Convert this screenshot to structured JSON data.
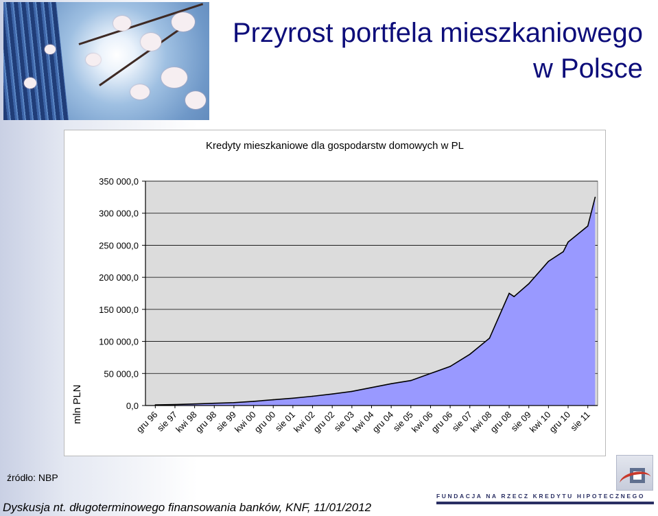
{
  "slide": {
    "title_line1": "Przyrost portfela mieszkaniowego",
    "title_line2": "w Polsce",
    "source": "źródło: NBP",
    "footer": "Dyskusja nt. długoterminowego finansowania banków, KNF, 11/01/2012",
    "logo_text": "FUNDACJA NA RZECZ KREDYTU HIPOTECZNEGO",
    "colors": {
      "title": "#0d0d7a",
      "area_fill": "#9999ff",
      "plot_bg": "#dcdcdc",
      "logo": "#2a2f63"
    }
  },
  "chart_data": {
    "type": "area",
    "title": "Kredyty mieszkaniowe dla gospodarstw domowych w PL",
    "xlabel": "",
    "ylabel": "mln PLN",
    "ylim": [
      0,
      350000
    ],
    "yticks": [
      0,
      50000,
      100000,
      150000,
      200000,
      250000,
      300000,
      350000
    ],
    "ytick_labels": [
      "0,0",
      "50 000,0",
      "100 000,0",
      "150 000,0",
      "200 000,0",
      "250 000,0",
      "300 000,0",
      "350 000,0"
    ],
    "grid": "horizontal",
    "legend": "none",
    "xtick_labels": [
      "gru 96",
      "sie 97",
      "kwi 98",
      "gru 98",
      "sie 99",
      "kwi 00",
      "gru 00",
      "sie 01",
      "kwi 02",
      "gru 02",
      "sie 03",
      "kwi 04",
      "gru 04",
      "sie 05",
      "kwi 06",
      "gru 06",
      "sie 07",
      "kwi 08",
      "gru 08",
      "sie 09",
      "kwi 10",
      "gru 10",
      "sie 11"
    ],
    "x": [
      "gru 96",
      "sie 97",
      "kwi 98",
      "gru 98",
      "sie 99",
      "kwi 00",
      "gru 00",
      "sie 01",
      "kwi 02",
      "gru 02",
      "sie 03",
      "kwi 04",
      "gru 04",
      "sie 05",
      "kwi 06",
      "gru 06",
      "sie 07",
      "kwi 08",
      "gru 08",
      "lut 09",
      "sie 09",
      "kwi 10",
      "paź 10",
      "gru 10",
      "sie 11",
      "lis 11"
    ],
    "series": [
      {
        "values": [
          1000,
          1500,
          2500,
          3500,
          4500,
          6500,
          9000,
          11500,
          14500,
          18000,
          22000,
          28000,
          34000,
          39000,
          50000,
          61000,
          80000,
          105000,
          175000,
          170000,
          190000,
          225000,
          240000,
          255000,
          280000,
          325000
        ]
      }
    ]
  }
}
